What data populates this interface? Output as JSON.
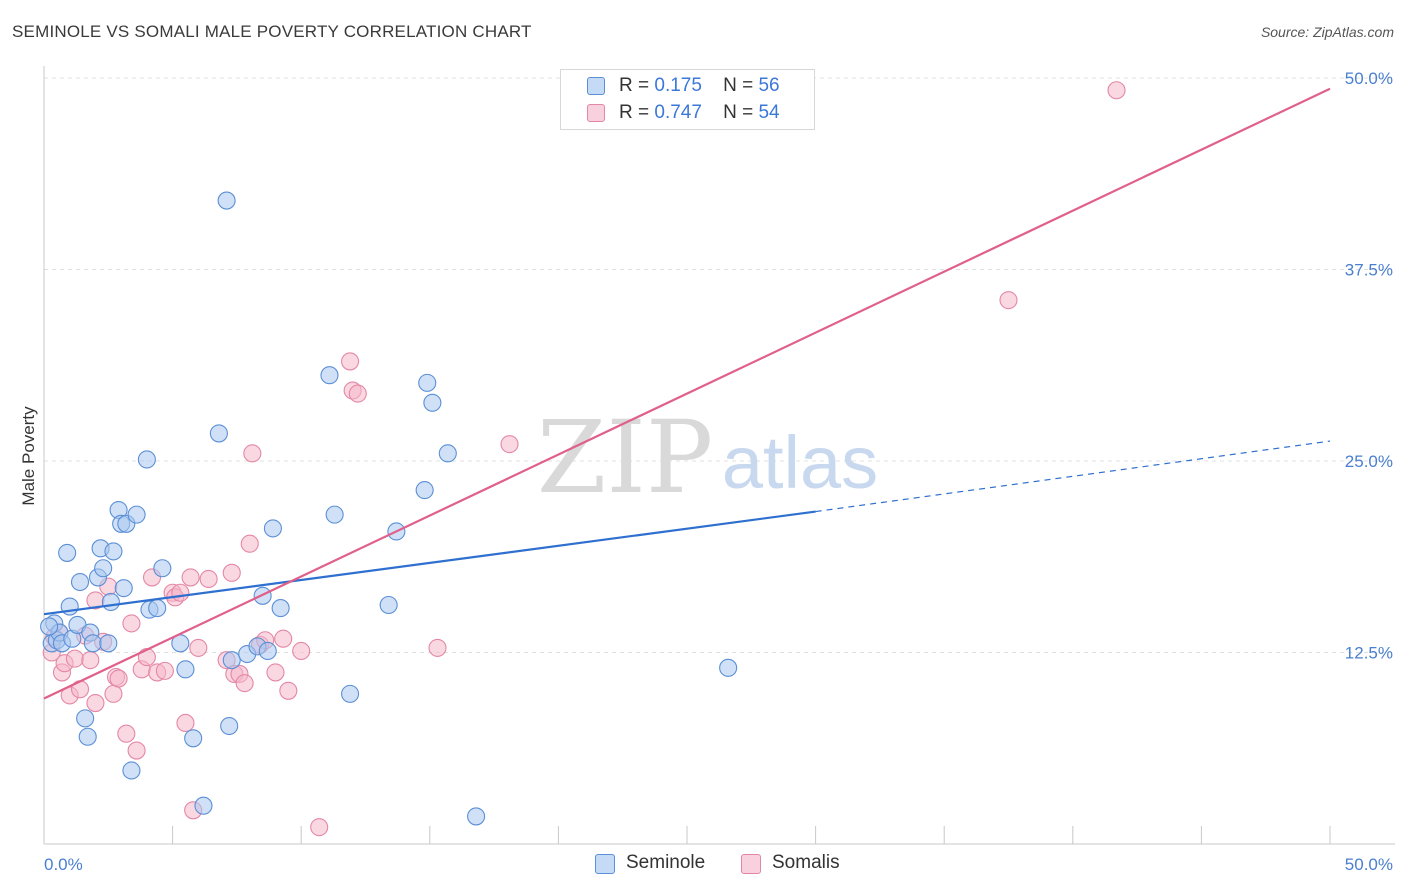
{
  "title": "SEMINOLE VS SOMALI MALE POVERTY CORRELATION CHART",
  "source": "Source: ZipAtlas.com",
  "watermark": {
    "zip": "ZIP",
    "atlas": "atlas"
  },
  "colors": {
    "seminole_fill": "#a9c8f0",
    "seminole_stroke": "#5b8fd6",
    "seminole_line": "#2e6fcf",
    "somali_fill": "#f5b8cb",
    "somali_stroke": "#e487a6",
    "somali_line": "#e0608a",
    "accent_text": "#3b78d8"
  },
  "legend": {
    "r_label": "R =",
    "n_label": "N =",
    "seminole": {
      "r": "0.175",
      "n": "56"
    },
    "somali": {
      "r": "0.747",
      "n": "54"
    }
  },
  "chart_data": {
    "type": "scatter",
    "title": "SEMINOLE VS SOMALI MALE POVERTY CORRELATION CHART",
    "xlabel": "",
    "ylabel": "Male Poverty",
    "xlim": [
      0,
      50
    ],
    "ylim": [
      0,
      50
    ],
    "x_tick_labels": {
      "min": "0.0%",
      "max": "50.0%"
    },
    "y_ticks": [
      {
        "value": 12.5,
        "label": "12.5%"
      },
      {
        "value": 25.0,
        "label": "25.0%"
      },
      {
        "value": 37.5,
        "label": "37.5%"
      },
      {
        "value": 50.0,
        "label": "50.0%"
      }
    ],
    "grid": "horizontal dashed",
    "legend_position": "top-center",
    "series": [
      {
        "name": "Seminole",
        "points": [
          [
            0.3,
            13.1
          ],
          [
            0.4,
            14.4
          ],
          [
            0.5,
            13.3
          ],
          [
            0.6,
            13.8
          ],
          [
            0.7,
            13.1
          ],
          [
            0.9,
            19.0
          ],
          [
            1.0,
            15.5
          ],
          [
            1.1,
            13.4
          ],
          [
            1.3,
            14.3
          ],
          [
            1.4,
            17.1
          ],
          [
            1.6,
            8.2
          ],
          [
            1.7,
            7.0
          ],
          [
            1.8,
            13.8
          ],
          [
            1.9,
            13.1
          ],
          [
            2.1,
            17.4
          ],
          [
            2.2,
            19.3
          ],
          [
            2.3,
            18.0
          ],
          [
            2.5,
            13.1
          ],
          [
            2.6,
            15.8
          ],
          [
            2.7,
            19.1
          ],
          [
            2.9,
            21.8
          ],
          [
            3.0,
            20.9
          ],
          [
            3.1,
            16.7
          ],
          [
            3.2,
            20.9
          ],
          [
            3.4,
            4.8
          ],
          [
            3.6,
            21.5
          ],
          [
            4.0,
            25.1
          ],
          [
            4.1,
            15.3
          ],
          [
            4.4,
            15.4
          ],
          [
            4.6,
            18.0
          ],
          [
            5.3,
            13.1
          ],
          [
            5.5,
            11.4
          ],
          [
            5.8,
            6.9
          ],
          [
            6.2,
            2.5
          ],
          [
            6.8,
            26.8
          ],
          [
            7.1,
            42.0
          ],
          [
            7.2,
            7.7
          ],
          [
            7.3,
            12.0
          ],
          [
            7.9,
            12.4
          ],
          [
            8.3,
            12.9
          ],
          [
            8.5,
            16.2
          ],
          [
            8.7,
            12.6
          ],
          [
            8.9,
            20.6
          ],
          [
            9.2,
            15.4
          ],
          [
            11.1,
            30.6
          ],
          [
            11.3,
            21.5
          ],
          [
            11.9,
            9.8
          ],
          [
            13.4,
            15.6
          ],
          [
            13.7,
            20.4
          ],
          [
            14.8,
            23.1
          ],
          [
            14.9,
            30.1
          ],
          [
            15.1,
            28.8
          ],
          [
            15.7,
            25.5
          ],
          [
            16.8,
            1.8
          ],
          [
            26.6,
            11.5
          ],
          [
            0.2,
            14.2
          ]
        ]
      },
      {
        "name": "Somalis",
        "points": [
          [
            0.3,
            12.5
          ],
          [
            0.4,
            13.5
          ],
          [
            0.6,
            13.8
          ],
          [
            0.7,
            11.2
          ],
          [
            0.8,
            11.8
          ],
          [
            1.0,
            9.7
          ],
          [
            1.2,
            12.1
          ],
          [
            1.4,
            10.1
          ],
          [
            1.6,
            13.6
          ],
          [
            1.8,
            12.0
          ],
          [
            2.0,
            9.2
          ],
          [
            2.0,
            15.9
          ],
          [
            2.3,
            13.2
          ],
          [
            2.5,
            16.8
          ],
          [
            2.7,
            9.8
          ],
          [
            2.8,
            10.9
          ],
          [
            2.9,
            10.8
          ],
          [
            3.2,
            7.2
          ],
          [
            3.4,
            14.4
          ],
          [
            3.6,
            6.1
          ],
          [
            3.8,
            11.4
          ],
          [
            4.0,
            12.2
          ],
          [
            4.2,
            17.4
          ],
          [
            4.4,
            11.2
          ],
          [
            4.7,
            11.3
          ],
          [
            5.0,
            16.4
          ],
          [
            5.1,
            16.1
          ],
          [
            5.3,
            16.4
          ],
          [
            5.5,
            7.9
          ],
          [
            5.7,
            17.4
          ],
          [
            5.8,
            2.2
          ],
          [
            6.0,
            12.8
          ],
          [
            6.4,
            17.3
          ],
          [
            7.1,
            12.0
          ],
          [
            7.3,
            17.7
          ],
          [
            7.4,
            11.1
          ],
          [
            7.6,
            11.1
          ],
          [
            7.8,
            10.5
          ],
          [
            8.0,
            19.6
          ],
          [
            8.1,
            25.5
          ],
          [
            8.4,
            13.0
          ],
          [
            8.6,
            13.3
          ],
          [
            9.0,
            11.2
          ],
          [
            9.3,
            13.4
          ],
          [
            9.5,
            10.0
          ],
          [
            10.0,
            12.6
          ],
          [
            10.7,
            1.1
          ],
          [
            11.9,
            31.5
          ],
          [
            12.0,
            29.6
          ],
          [
            12.2,
            29.4
          ],
          [
            15.3,
            12.8
          ],
          [
            18.1,
            26.1
          ],
          [
            37.5,
            35.5
          ],
          [
            41.7,
            49.2
          ]
        ]
      }
    ],
    "trend_lines": [
      {
        "name": "Seminole",
        "x0": 0,
        "y0": 15.0,
        "x1": 30,
        "y1": 21.7,
        "dashed_to_x": 50,
        "dashed_to_y": 26.3
      },
      {
        "name": "Somalis",
        "x0": 0,
        "y0": 9.5,
        "x1": 50,
        "y1": 49.3
      }
    ]
  },
  "bottom_legend": {
    "seminole": "Seminole",
    "somali": "Somalis"
  }
}
